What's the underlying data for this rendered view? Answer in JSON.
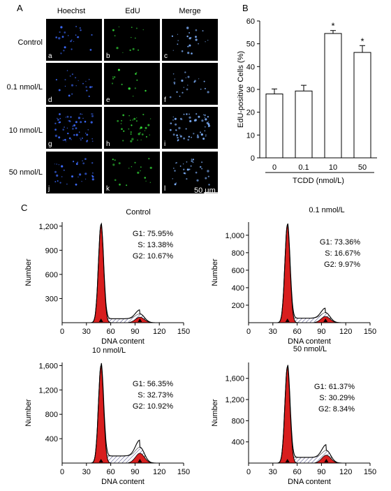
{
  "panel_labels": {
    "a": "A",
    "b": "B",
    "c": "C"
  },
  "microscopy": {
    "columns": [
      "Hoechst",
      "EdU",
      "Merge"
    ],
    "rows": [
      "Control",
      "0.1 nmol/L",
      "10 nmol/L",
      "50 nmol/L"
    ],
    "tiles": [
      "a",
      "b",
      "c",
      "d",
      "e",
      "f",
      "g",
      "h",
      "i",
      "j",
      "k",
      "l"
    ],
    "scale_bar": "50 μm",
    "stain_colors": {
      "hoechst": "#3d6bff",
      "edu": "#35e23a",
      "merge": "#7fb2ff"
    }
  },
  "chart_data": [
    {
      "type": "bar",
      "panel": "B",
      "categories": [
        "0",
        "0.1",
        "10",
        "50"
      ],
      "values": [
        28,
        29.3,
        54.5,
        46.2
      ],
      "errors": [
        2.2,
        2.5,
        1.3,
        3.0
      ],
      "significance": [
        "",
        "",
        "*",
        "*"
      ],
      "ylabel": "EdU-positive Cells (%)",
      "xlabel": "TCDD (nmol/L)",
      "ylim": [
        0,
        60
      ],
      "yticks": [
        0,
        10,
        20,
        30,
        40,
        50,
        60
      ]
    },
    {
      "type": "area",
      "panel": "C",
      "title": "Control",
      "xlabel": "DNA content",
      "ylabel": "Number",
      "xlim": [
        0,
        150
      ],
      "ylim": [
        0,
        1250
      ],
      "xticks": [
        0,
        30,
        60,
        90,
        120,
        150
      ],
      "yticks": [
        300,
        600,
        900,
        1200
      ],
      "g1_peak": {
        "x": 48,
        "y": 1220
      },
      "g2_peak": {
        "x": 96,
        "y": 110
      },
      "stats": [
        "G1: 75.95%",
        "S: 13.38%",
        "G2: 10.67%"
      ]
    },
    {
      "type": "area",
      "panel": "C",
      "title": "0.1 nmol/L",
      "xlabel": "DNA content",
      "ylabel": "Number",
      "xlim": [
        0,
        150
      ],
      "ylim": [
        0,
        1150
      ],
      "xticks": [
        0,
        30,
        60,
        90,
        120,
        150
      ],
      "yticks": [
        200,
        400,
        600,
        800,
        1000
      ],
      "g1_peak": {
        "x": 48,
        "y": 1120
      },
      "g2_peak": {
        "x": 95,
        "y": 115
      },
      "stats": [
        "G1: 73.36%",
        "S: 16.67%",
        "G2: 9.97%"
      ]
    },
    {
      "type": "area",
      "panel": "C",
      "title": "10 nmol/L",
      "xlabel": "DNA content",
      "ylabel": "Number",
      "xlim": [
        0,
        150
      ],
      "ylim": [
        0,
        1650
      ],
      "xticks": [
        0,
        30,
        60,
        90,
        120,
        150
      ],
      "yticks": [
        400,
        800,
        1200,
        1600
      ],
      "g1_peak": {
        "x": 48,
        "y": 1600
      },
      "g2_peak": {
        "x": 96,
        "y": 260
      },
      "stats": [
        "G1: 56.35%",
        "S: 32.73%",
        "G2: 10.92%"
      ]
    },
    {
      "type": "area",
      "panel": "C",
      "title": "50 nmol/L",
      "xlabel": "DNA content",
      "ylabel": "Number",
      "xlim": [
        0,
        150
      ],
      "ylim": [
        0,
        1900
      ],
      "xticks": [
        0,
        30,
        60,
        90,
        120,
        150
      ],
      "yticks": [
        400,
        800,
        1200,
        1600
      ],
      "g1_peak": {
        "x": 48,
        "y": 1820
      },
      "g2_peak": {
        "x": 96,
        "y": 240
      },
      "stats": [
        "G1: 61.37%",
        "S: 30.29%",
        "G2: 8.34%"
      ]
    }
  ]
}
